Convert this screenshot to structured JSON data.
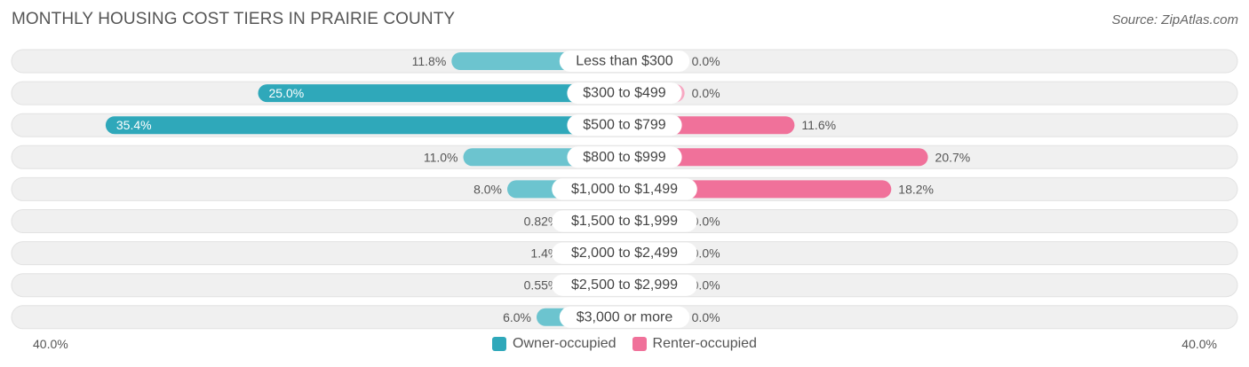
{
  "title": "MONTHLY HOUSING COST TIERS IN PRAIRIE COUNTY",
  "source": "Source: ZipAtlas.com",
  "colors": {
    "owner": "#6cc4cf",
    "owner_strong": "#2fa8ba",
    "renter": "#f7a8c2",
    "renter_strong": "#f0719a",
    "row_bg": "#f0f0f0"
  },
  "axis": {
    "left_label": "40.0%",
    "right_label": "40.0%"
  },
  "legend": {
    "owner": "Owner-occupied",
    "renter": "Renter-occupied"
  },
  "chart_data": {
    "type": "bar",
    "orientation": "horizontal-diverging",
    "categories": [
      "Less than $300",
      "$300 to $499",
      "$500 to $799",
      "$800 to $999",
      "$1,000 to $1,499",
      "$1,500 to $1,999",
      "$2,000 to $2,499",
      "$2,500 to $2,999",
      "$3,000 or more"
    ],
    "series": [
      {
        "name": "Owner-occupied",
        "values": [
          11.8,
          25.0,
          35.4,
          11.0,
          8.0,
          0.82,
          1.4,
          0.55,
          6.0
        ],
        "labels": [
          "11.8%",
          "25.0%",
          "35.4%",
          "11.0%",
          "8.0%",
          "0.82%",
          "1.4%",
          "0.55%",
          "6.0%"
        ]
      },
      {
        "name": "Renter-occupied",
        "values": [
          0.0,
          0.0,
          11.6,
          20.7,
          18.2,
          0.0,
          0.0,
          0.0,
          0.0
        ],
        "labels": [
          "0.0%",
          "0.0%",
          "11.6%",
          "20.7%",
          "18.2%",
          "0.0%",
          "0.0%",
          "0.0%",
          "0.0%"
        ]
      }
    ],
    "xlim": [
      -40,
      40
    ],
    "legend_position": "bottom-center"
  }
}
